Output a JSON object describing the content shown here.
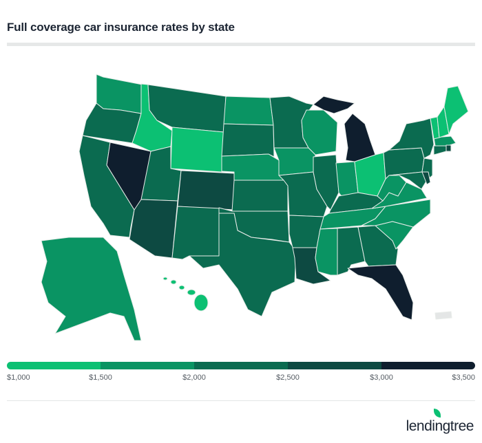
{
  "title": "Full coverage car insurance rates by state",
  "legend": {
    "bins": [
      "#0cc073",
      "#0a9463",
      "#0b6b50",
      "#0d4a42",
      "#0f1e2e"
    ],
    "ticks": [
      "$1,000",
      "$1,500",
      "$2,000",
      "$2,500",
      "$3,000",
      "$3,500"
    ]
  },
  "no_data_color": "#e4e6e6",
  "border_color": "#e8ece9",
  "states": {
    "WA": 1,
    "OR": 2,
    "CA": 2,
    "NV": 4,
    "ID": 0,
    "MT": 2,
    "WY": 0,
    "UT": 2,
    "CO": 3,
    "AZ": 3,
    "NM": 2,
    "ND": 1,
    "SD": 2,
    "NE": 1,
    "KS": 2,
    "OK": 2,
    "TX": 2,
    "MN": 2,
    "WI": 1,
    "IA": 1,
    "MO": 2,
    "IL": 2,
    "IN": 1,
    "OH": 0,
    "KY": 2,
    "TN": 1,
    "AR": 2,
    "LA": 3,
    "MS": 1,
    "AL": 2,
    "GA": 2,
    "FL": 4,
    "SC": 1,
    "NC": 1,
    "VA": 1,
    "WV": 1,
    "PA": 2,
    "NY": 2,
    "NJ": 2,
    "MD": 2,
    "DE": 3,
    "MA": 1,
    "CT": 2,
    "RI": 3,
    "VT": 0,
    "NH": 0,
    "ME": 0,
    "MI": 4,
    "AK": 1,
    "HI": 0
  },
  "logo": "lendingtree"
}
